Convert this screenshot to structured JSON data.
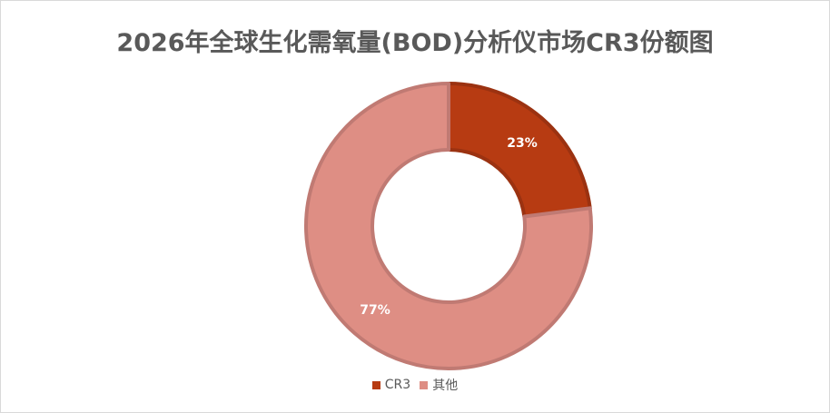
{
  "chart_data": {
    "type": "pie",
    "title": "2026年全球生化需氧量(BOD)分析仪市场CR3份额图",
    "categories": [
      "CR3",
      "其他"
    ],
    "values": [
      23,
      77
    ],
    "data_labels": [
      "23%",
      "77%"
    ],
    "colors": [
      "#B73B12",
      "#DE8E84"
    ],
    "outline_colors": [
      "#9B3211",
      "#C07A73"
    ],
    "donut": true,
    "legend": "bottom"
  }
}
